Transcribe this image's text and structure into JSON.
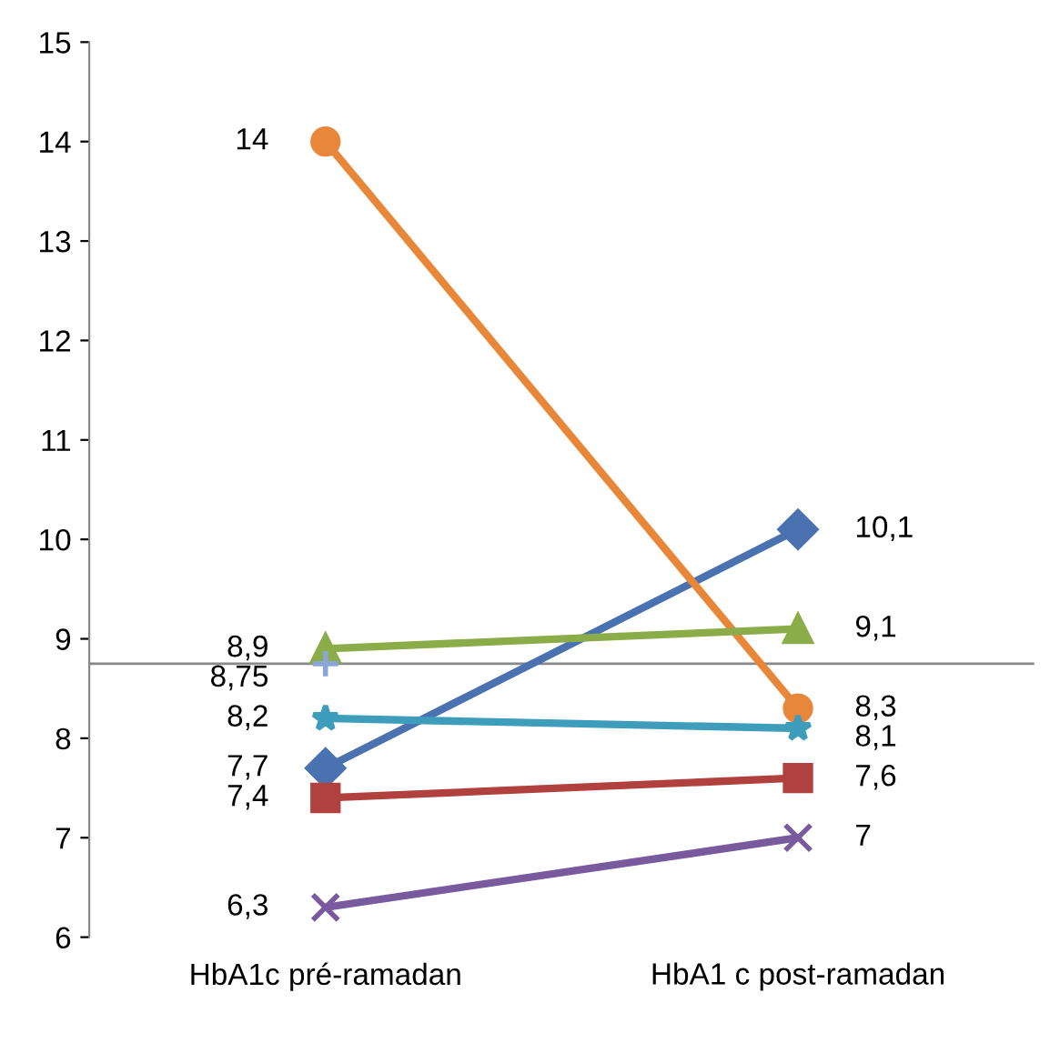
{
  "chart_data": {
    "type": "line",
    "categories": [
      "HbA1c pré-ramadan",
      "HbA1 c post-ramadan"
    ],
    "series": [
      {
        "color": "#4a72b0",
        "marker": "diamond",
        "values": [
          7.7,
          10.1
        ],
        "value_labels": [
          "7,7",
          "10,1"
        ]
      },
      {
        "color": "#e8873a",
        "marker": "circle",
        "values": [
          14,
          8.3
        ],
        "value_labels": [
          "14",
          "8,3"
        ]
      },
      {
        "color": "#8aad4a",
        "marker": "triangle",
        "values": [
          8.9,
          9.1
        ],
        "value_labels": [
          "8,9",
          "9,1"
        ]
      },
      {
        "color": "#8aa6d8",
        "marker": "plus",
        "values": [
          8.75,
          null
        ],
        "value_labels": [
          "8,75",
          null
        ]
      },
      {
        "color": "#3d9dba",
        "marker": "star",
        "values": [
          8.2,
          8.1
        ],
        "value_labels": [
          "8,2",
          "8,1"
        ]
      },
      {
        "color": "#b0413e",
        "marker": "square",
        "values": [
          7.4,
          7.6
        ],
        "value_labels": [
          "7,4",
          "7,6"
        ]
      },
      {
        "color": "#7a5a9e",
        "marker": "cross",
        "values": [
          6.3,
          7
        ],
        "value_labels": [
          "6,3",
          "7"
        ]
      }
    ],
    "ylim": [
      6,
      15
    ],
    "yticks": [
      6,
      7,
      8,
      9,
      10,
      11,
      12,
      13,
      14,
      15
    ],
    "ref_lines": [
      {
        "axis": "y",
        "value": 8.75,
        "color": "#888888"
      }
    ],
    "grid": false,
    "legend": false
  }
}
